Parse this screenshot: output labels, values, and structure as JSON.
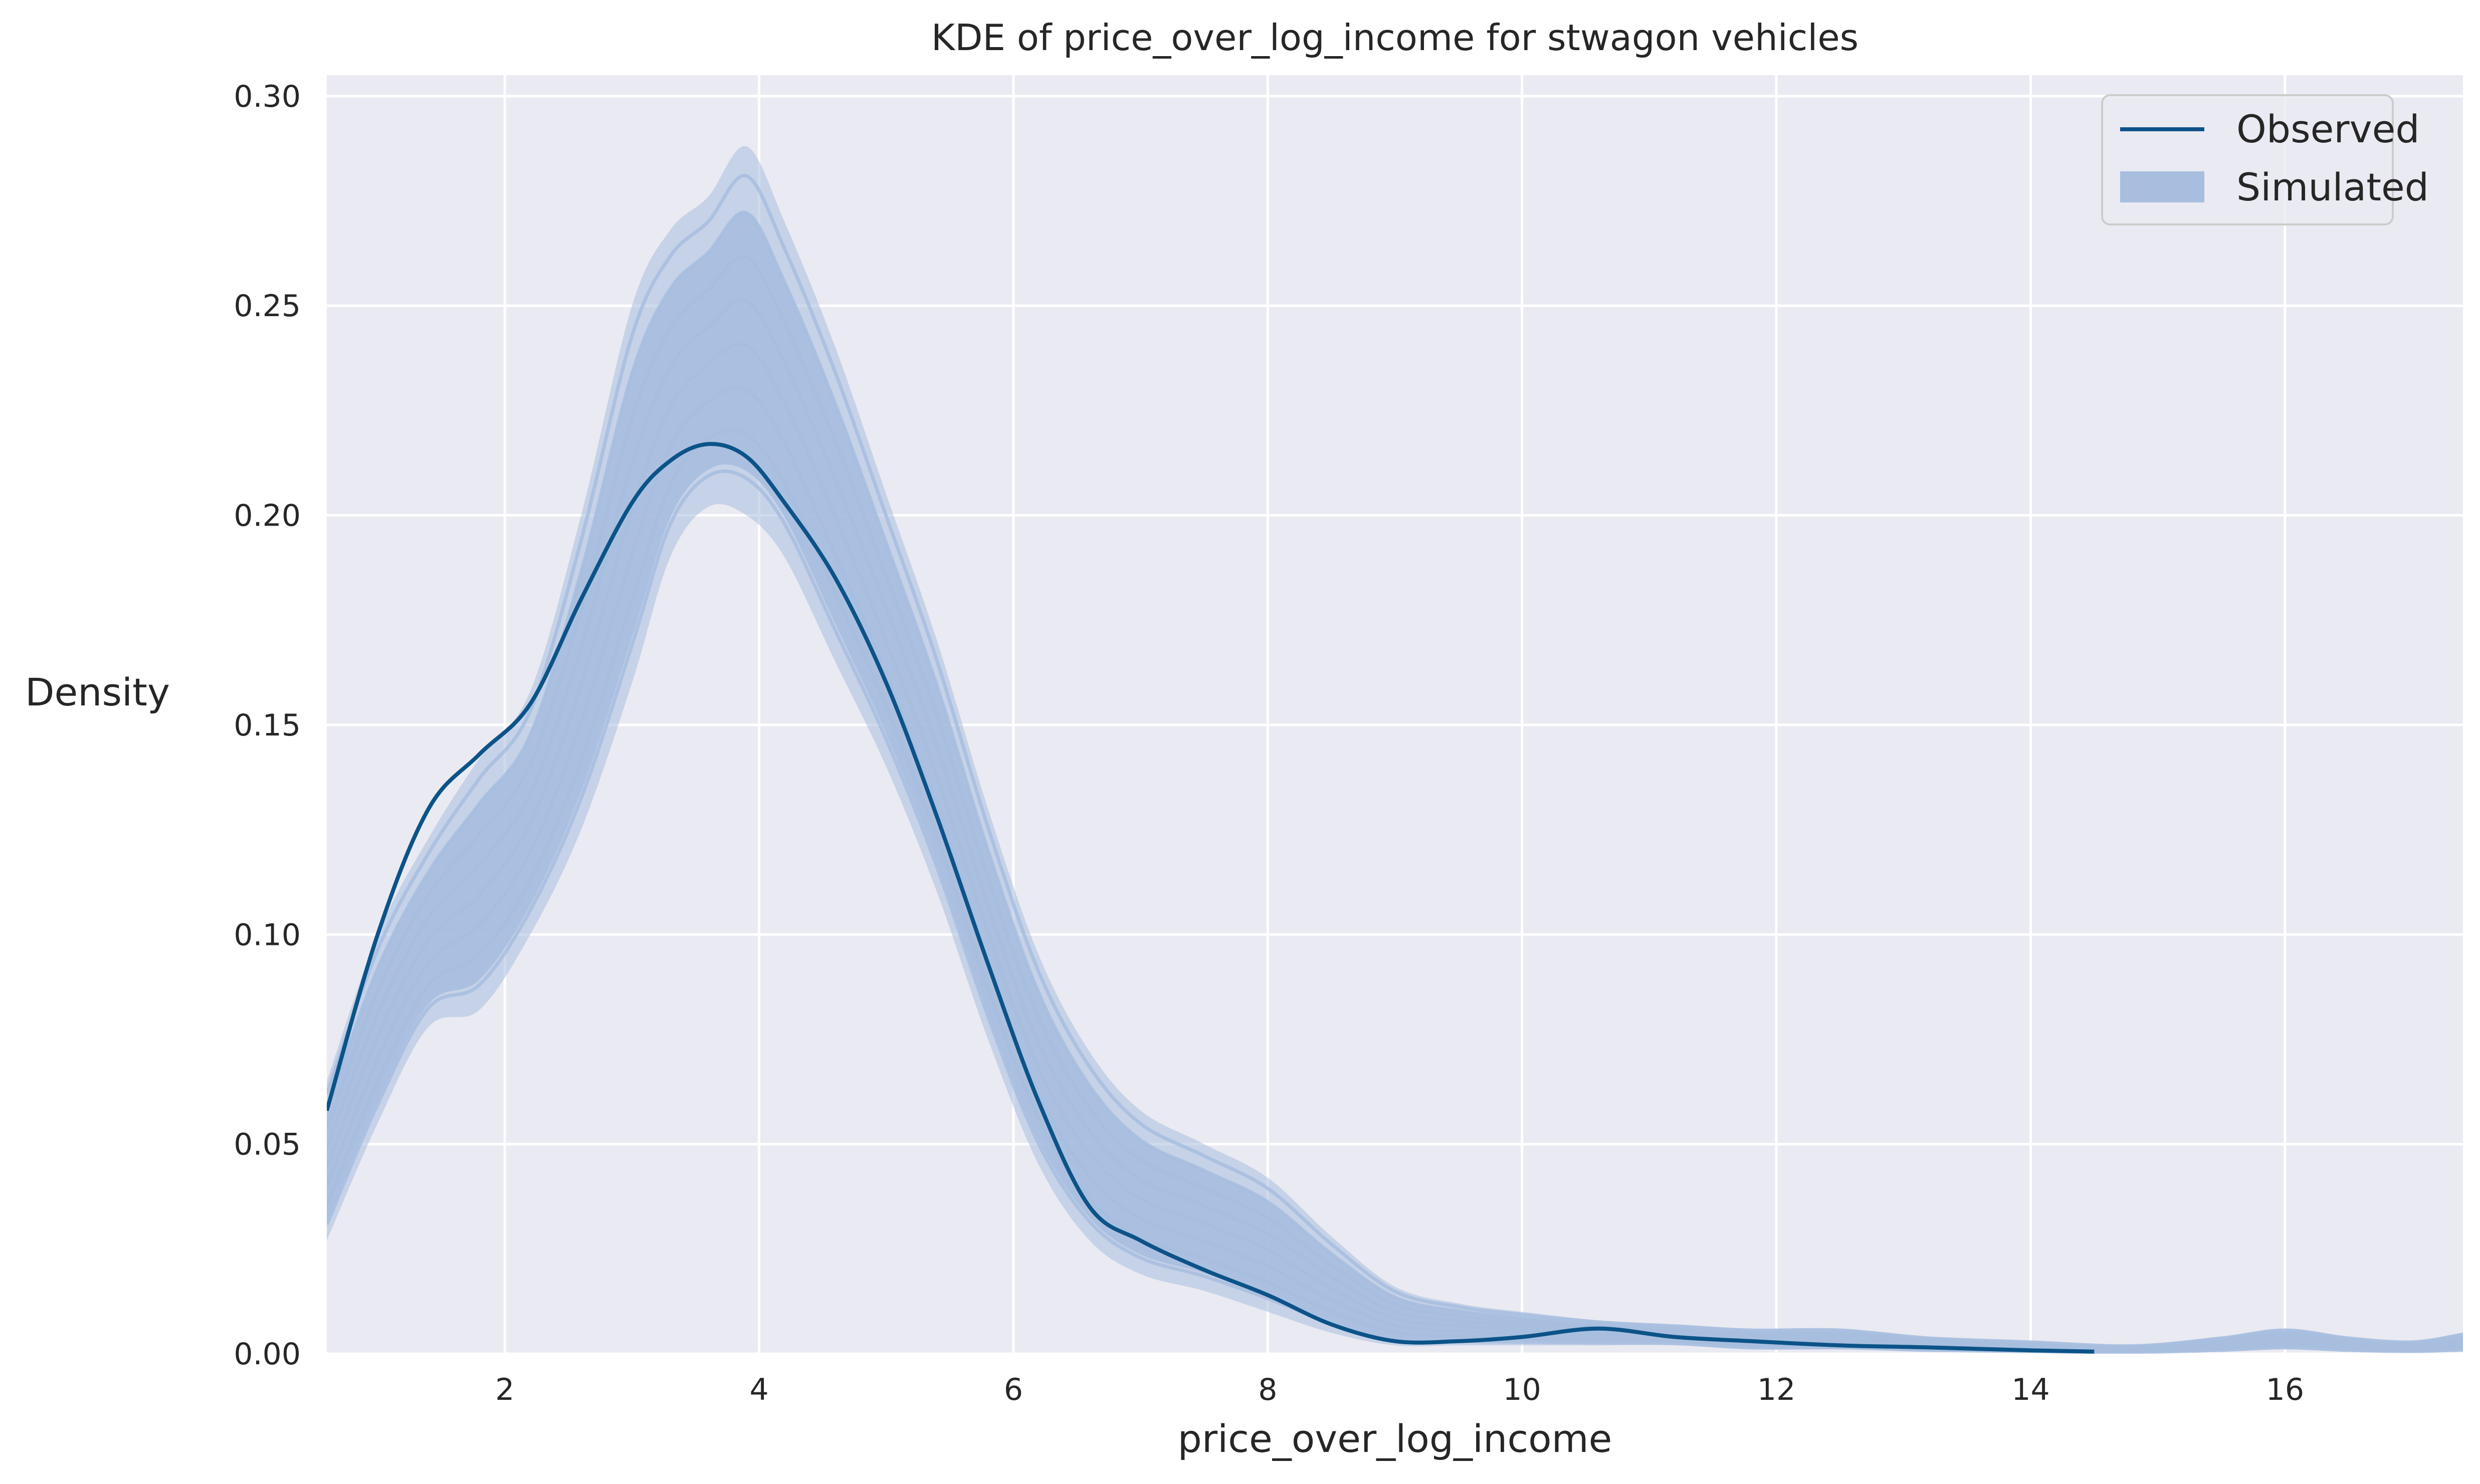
{
  "chart_data": {
    "type": "line",
    "title": "KDE of price_over_log_income for stwagon vehicles",
    "xlabel": "price_over_log_income",
    "ylabel": "Density",
    "xlim": [
      0.6,
      17.4
    ],
    "ylim": [
      0,
      0.305
    ],
    "x_ticks": [
      2,
      4,
      6,
      8,
      10,
      12,
      14,
      16
    ],
    "x_tick_labels": [
      "2",
      "4",
      "6",
      "8",
      "10",
      "12",
      "14",
      "16"
    ],
    "y_ticks": [
      0,
      0.05,
      0.1,
      0.15,
      0.2,
      0.25,
      0.3
    ],
    "y_tick_labels": [
      "0.00",
      "0.05",
      "0.10",
      "0.15",
      "0.20",
      "0.25",
      "0.30"
    ],
    "grid": true,
    "legend_position": "top-right",
    "colors": {
      "background": "#eaeaf2",
      "grid": "#ffffff",
      "observed": "#0b5388",
      "simulated": "#a7bedf"
    },
    "legend": [
      {
        "label": "Observed",
        "kind": "line"
      },
      {
        "label": "Simulated",
        "kind": "patch"
      }
    ],
    "series": [
      {
        "name": "Observed",
        "style": "line",
        "x": [
          0.6,
          1.0,
          1.4,
          1.8,
          2.2,
          2.6,
          3.0,
          3.3,
          3.6,
          3.9,
          4.2,
          4.6,
          5.0,
          5.4,
          5.8,
          6.2,
          6.6,
          7.0,
          7.5,
          8.0,
          8.5,
          9.0,
          9.5,
          10.0,
          10.6,
          11.2,
          11.8,
          12.5,
          13.2,
          14.0,
          14.5
        ],
        "y": [
          0.058,
          0.1,
          0.13,
          0.143,
          0.155,
          0.18,
          0.203,
          0.213,
          0.217,
          0.214,
          0.203,
          0.185,
          0.16,
          0.128,
          0.093,
          0.06,
          0.035,
          0.027,
          0.02,
          0.014,
          0.007,
          0.003,
          0.003,
          0.004,
          0.006,
          0.004,
          0.003,
          0.002,
          0.0015,
          0.0008,
          0.0005
        ]
      },
      {
        "name": "Simulated",
        "style": "band",
        "x": [
          0.6,
          1.0,
          1.4,
          1.8,
          2.2,
          2.6,
          3.0,
          3.3,
          3.6,
          3.9,
          4.2,
          4.6,
          5.0,
          5.4,
          5.8,
          6.2,
          6.6,
          7.0,
          7.5,
          8.0,
          8.5,
          9.0,
          9.5,
          10.0,
          10.6,
          11.2,
          11.8,
          12.5,
          13.2,
          14.0,
          14.8,
          15.5,
          16.0,
          16.5,
          17.0,
          17.4
        ],
        "lower": [
          0.027,
          0.055,
          0.078,
          0.082,
          0.1,
          0.125,
          0.16,
          0.19,
          0.202,
          0.2,
          0.19,
          0.165,
          0.14,
          0.11,
          0.075,
          0.045,
          0.027,
          0.019,
          0.015,
          0.01,
          0.005,
          0.002,
          0.002,
          0.002,
          0.002,
          0.002,
          0.001,
          0.001,
          0.0005,
          0.0003,
          0.0002,
          0.0005,
          0.001,
          0.0005,
          0.0003,
          0.0005
        ],
        "upper": [
          0.065,
          0.1,
          0.123,
          0.142,
          0.158,
          0.2,
          0.25,
          0.268,
          0.276,
          0.288,
          0.27,
          0.24,
          0.205,
          0.17,
          0.13,
          0.095,
          0.072,
          0.058,
          0.05,
          0.042,
          0.028,
          0.016,
          0.012,
          0.01,
          0.008,
          0.007,
          0.006,
          0.006,
          0.004,
          0.003,
          0.002,
          0.004,
          0.006,
          0.004,
          0.003,
          0.005
        ]
      }
    ]
  }
}
